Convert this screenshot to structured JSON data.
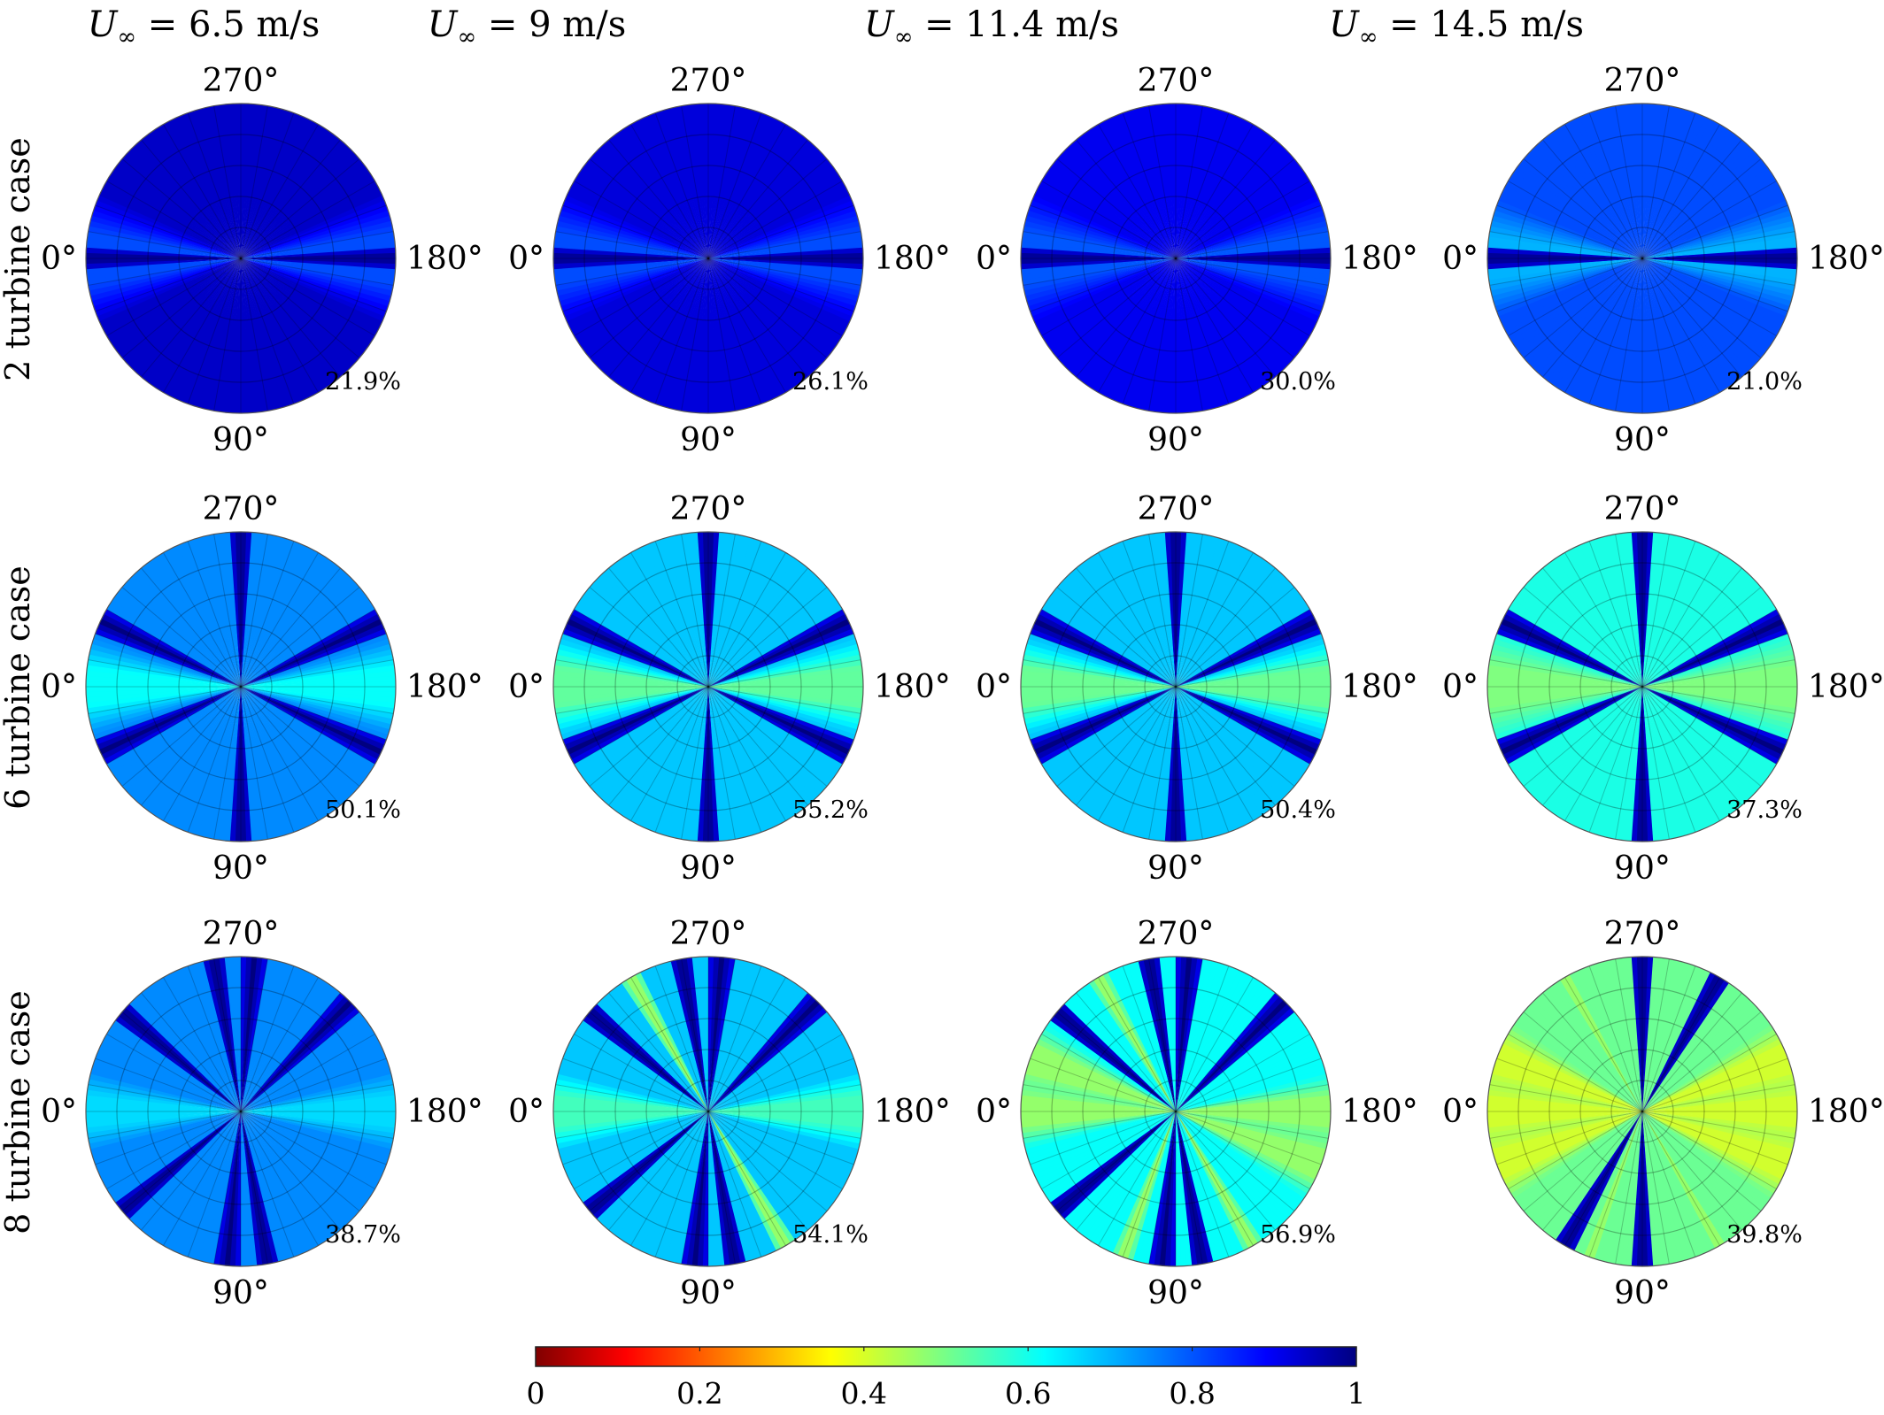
{
  "column_titles": [
    {
      "symbol": "U",
      "subscript": "∞",
      "rest": " = 6.5 m/s"
    },
    {
      "symbol": "U",
      "subscript": "∞",
      "rest": " = 9 m/s"
    },
    {
      "symbol": "U",
      "subscript": "∞",
      "rest": " = 11.4 m/s"
    },
    {
      "symbol": "U",
      "subscript": "∞",
      "rest": " = 14.5 m/s"
    }
  ],
  "row_labels": [
    "2 turbine case",
    "6 turbine case",
    "8 turbine case"
  ],
  "angle_labels": {
    "top": "270°",
    "left": "0°",
    "right": "180°",
    "bottom": "90°"
  },
  "chart_data": {
    "type": "heatmap",
    "subtype": "polar",
    "colormap": "jet_reversed",
    "colorbar": {
      "range": [
        0,
        1
      ],
      "ticks": [
        0,
        0.2,
        0.4,
        0.6,
        0.8,
        1
      ],
      "tick_labels": [
        "0",
        "0.2",
        "0.4",
        "0.6",
        "0.8",
        "1"
      ],
      "orientation": "horizontal",
      "position": "bottom"
    },
    "panels": [
      {
        "row": 0,
        "col": 0,
        "percent_label": "21.9%",
        "base": 0.93,
        "sector_level": 0.8,
        "sector_angles": [
          0,
          180
        ],
        "sector_width": 25,
        "dark_lines": [
          0,
          180
        ],
        "stripes": []
      },
      {
        "row": 0,
        "col": 1,
        "percent_label": "26.1%",
        "base": 0.91,
        "sector_level": 0.8,
        "sector_angles": [
          0,
          180
        ],
        "sector_width": 25,
        "dark_lines": [
          0,
          180
        ],
        "stripes": []
      },
      {
        "row": 0,
        "col": 2,
        "percent_label": "30.0%",
        "base": 0.89,
        "sector_level": 0.79,
        "sector_angles": [
          0,
          180
        ],
        "sector_width": 25,
        "dark_lines": [
          0,
          180
        ],
        "stripes": []
      },
      {
        "row": 0,
        "col": 3,
        "percent_label": "21.0%",
        "base": 0.8,
        "sector_level": 0.7,
        "sector_angles": [
          0,
          180
        ],
        "sector_width": 22,
        "dark_lines": [
          0,
          180
        ],
        "stripes": []
      },
      {
        "row": 1,
        "col": 0,
        "percent_label": "50.1%",
        "base": 0.74,
        "sector_level": 0.62,
        "sector_angles": [
          0,
          180
        ],
        "sector_width": 18,
        "dark_lines": [
          25,
          155,
          205,
          335,
          90,
          270
        ],
        "stripes": []
      },
      {
        "row": 1,
        "col": 1,
        "percent_label": "55.2%",
        "base": 0.68,
        "sector_level": 0.53,
        "sector_angles": [
          0,
          180
        ],
        "sector_width": 18,
        "dark_lines": [
          25,
          155,
          205,
          335,
          90,
          270
        ],
        "stripes": []
      },
      {
        "row": 1,
        "col": 2,
        "percent_label": "50.4%",
        "base": 0.68,
        "sector_level": 0.52,
        "sector_angles": [
          0,
          180
        ],
        "sector_width": 18,
        "dark_lines": [
          25,
          155,
          205,
          335,
          90,
          270
        ],
        "stripes": []
      },
      {
        "row": 1,
        "col": 3,
        "percent_label": "37.3%",
        "base": 0.6,
        "sector_level": 0.5,
        "sector_angles": [
          0,
          180
        ],
        "sector_width": 20,
        "dark_lines": [
          25,
          155,
          205,
          335,
          90,
          270
        ],
        "stripes": []
      },
      {
        "row": 2,
        "col": 0,
        "percent_label": "38.7%",
        "base": 0.74,
        "sector_level": 0.66,
        "sector_angles": [
          0,
          180
        ],
        "sector_width": 15,
        "dark_lines": [
          40,
          85,
          100,
          225,
          265,
          280,
          320
        ],
        "stripes": []
      },
      {
        "row": 2,
        "col": 1,
        "percent_label": "54.1%",
        "base": 0.68,
        "sector_level": 0.56,
        "sector_angles": [
          0,
          180
        ],
        "sector_width": 15,
        "dark_lines": [
          40,
          85,
          100,
          225,
          265,
          280,
          320
        ],
        "stripes": [
          120,
          300
        ]
      },
      {
        "row": 2,
        "col": 2,
        "percent_label": "56.9%",
        "base": 0.62,
        "sector_level": 0.48,
        "sector_angles": [
          0,
          180,
          160,
          340
        ],
        "sector_width": 14,
        "dark_lines": [
          40,
          85,
          100,
          225,
          265,
          280,
          320
        ],
        "stripes": [
          120,
          300,
          70
        ]
      },
      {
        "row": 2,
        "col": 3,
        "percent_label": "39.8%",
        "base": 0.52,
        "sector_level": 0.42,
        "sector_angles": [
          0,
          180,
          160,
          340,
          20,
          200
        ],
        "sector_width": 14,
        "dark_lines": [
          90,
          270,
          60,
          240
        ],
        "stripes": [
          120,
          300,
          70
        ]
      }
    ]
  }
}
